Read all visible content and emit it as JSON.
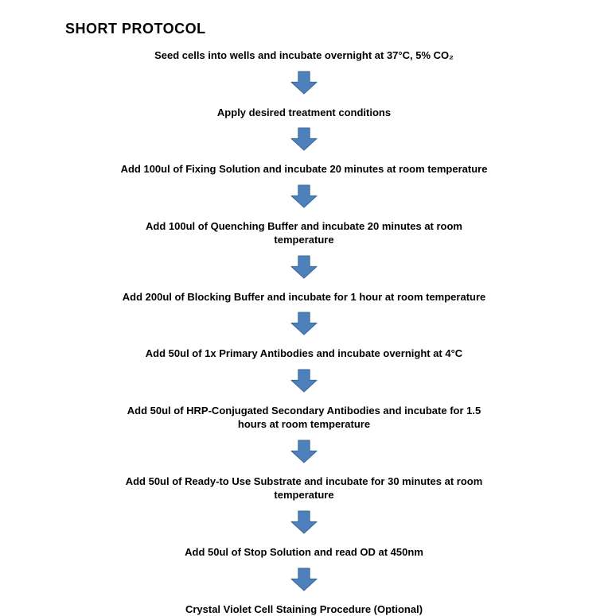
{
  "title": "SHORT PROTOCOL",
  "arrow": {
    "fill": "#4e80bb",
    "stroke": "#3a6596",
    "stroke_width": 1,
    "width": 34,
    "height": 30
  },
  "step_style": {
    "font_size": 13,
    "font_weight": 700,
    "color": "#000000"
  },
  "steps": [
    "Seed cells into wells and incubate overnight at 37°C, 5% CO₂",
    "Apply desired treatment conditions",
    "Add 100ul of Fixing Solution and incubate 20 minutes at room temperature",
    "Add 100ul of Quenching Buffer and incubate 20 minutes at room\ntemperature",
    "Add 200ul of Blocking Buffer and incubate for 1 hour at room temperature",
    "Add 50ul of 1x Primary Antibodies and incubate overnight at 4°C",
    "Add 50ul of HRP-Conjugated Secondary Antibodies and incubate for 1.5\nhours at room temperature",
    "Add 50ul of Ready-to Use Substrate and incubate for 30 minutes at room\ntemperature",
    "Add 50ul of Stop Solution and read OD at 450nm",
    "Crystal Violet Cell Staining Procedure (Optional)"
  ]
}
